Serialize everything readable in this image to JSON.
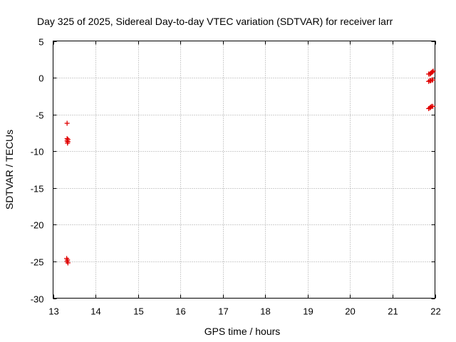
{
  "chart_data": {
    "type": "scatter",
    "title": "Day 325 of 2025, Sidereal Day-to-day VTEC variation (SDTVAR) for receiver larr",
    "xlabel": "GPS time / hours",
    "ylabel": "SDTVAR / TECUs",
    "xlim": [
      13,
      22
    ],
    "ylim": [
      -30,
      5
    ],
    "xticks": [
      13,
      14,
      15,
      16,
      17,
      18,
      19,
      20,
      21,
      22
    ],
    "yticks": [
      5,
      0,
      -5,
      -10,
      -15,
      -20,
      -25,
      -30
    ],
    "xtick_labels": [
      "13",
      "14",
      "15",
      "16",
      "17",
      "18",
      "19",
      "20",
      "21",
      "22"
    ],
    "ytick_labels": [
      "5",
      "0",
      "-5",
      "-10",
      "-15",
      "-20",
      "-25",
      "-30"
    ],
    "grid": true,
    "marker": "plus",
    "marker_color": "#e00000",
    "series": [
      {
        "points": [
          [
            13.33,
            -6.2
          ],
          [
            13.33,
            -8.3
          ],
          [
            13.35,
            -8.4
          ],
          [
            13.33,
            -8.6
          ],
          [
            13.35,
            -8.7
          ],
          [
            13.34,
            -8.9
          ],
          [
            13.32,
            -24.6
          ],
          [
            13.34,
            -24.8
          ],
          [
            13.33,
            -25.0
          ],
          [
            13.35,
            -25.2
          ],
          [
            21.85,
            0.5
          ],
          [
            21.88,
            0.5
          ],
          [
            21.9,
            0.6
          ],
          [
            21.92,
            0.7
          ],
          [
            21.94,
            0.8
          ],
          [
            21.96,
            0.9
          ],
          [
            21.85,
            -0.5
          ],
          [
            21.88,
            -0.4
          ],
          [
            21.9,
            -0.4
          ],
          [
            21.93,
            -0.3
          ],
          [
            21.95,
            -0.3
          ],
          [
            21.85,
            -4.2
          ],
          [
            21.88,
            -4.1
          ],
          [
            21.9,
            -4.0
          ],
          [
            21.92,
            -3.9
          ],
          [
            21.95,
            -3.9
          ]
        ]
      }
    ]
  }
}
